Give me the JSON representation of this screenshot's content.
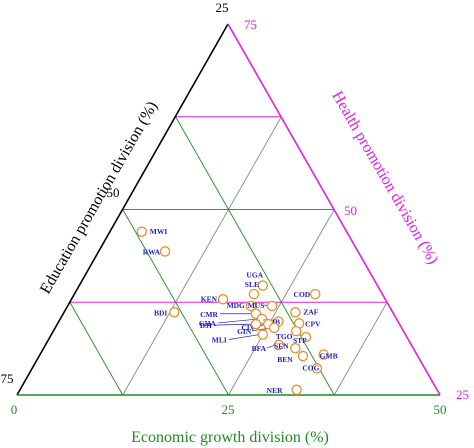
{
  "chart_data": {
    "type": "ternary-scatter",
    "axes": {
      "education": {
        "label": "Education promotion division (%)",
        "ticks": [
          "25",
          "50",
          "75"
        ],
        "color": "#000000"
      },
      "health": {
        "label": "Health promotion division (%)",
        "ticks": [
          "75",
          "50",
          "25"
        ],
        "color": "#e020e0"
      },
      "economic": {
        "label": "Economic growth division (%)",
        "ticks": [
          "0",
          "25",
          "50"
        ],
        "color": "#228B22"
      }
    },
    "marker_color": "#e8902a",
    "label_color": "#1f1fbf",
    "points": [
      {
        "label": "MWI",
        "u": 0.295,
        "v": 0.44
      },
      {
        "label": "RWA",
        "u": 0.35,
        "v": 0.387
      },
      {
        "label": "UGA",
        "u": 0.581,
        "v": 0.295
      },
      {
        "label": "SLE",
        "u": 0.56,
        "v": 0.272
      },
      {
        "label": "COD",
        "u": 0.705,
        "v": 0.272
      },
      {
        "label": "KEN",
        "u": 0.487,
        "v": 0.258
      },
      {
        "label": "MDG",
        "u": 0.553,
        "v": 0.24
      },
      {
        "label": "MUS",
        "u": 0.603,
        "v": 0.24
      },
      {
        "label": "BDI",
        "u": 0.372,
        "v": 0.223
      },
      {
        "label": "ZAF",
        "u": 0.658,
        "v": 0.223
      },
      {
        "label": "CMR",
        "u": 0.565,
        "v": 0.219
      },
      {
        "label": "GHA",
        "u": 0.579,
        "v": 0.205
      },
      {
        "label": "ZMB",
        "u": 0.618,
        "v": 0.198
      },
      {
        "label": "CPV",
        "u": 0.667,
        "v": 0.193
      },
      {
        "label": "CIV",
        "u": 0.594,
        "v": 0.191
      },
      {
        "label": "DJI",
        "u": 0.565,
        "v": 0.191
      },
      {
        "label": "GIN",
        "u": 0.608,
        "v": 0.181
      },
      {
        "label": "TGO",
        "u": 0.66,
        "v": 0.172
      },
      {
        "label": "MLI",
        "u": 0.581,
        "v": 0.163
      },
      {
        "label": "STP",
        "u": 0.683,
        "v": 0.156
      },
      {
        "label": "BFA",
        "u": 0.619,
        "v": 0.135
      },
      {
        "label": "SEN",
        "u": 0.658,
        "v": 0.126
      },
      {
        "label": "GMB",
        "u": 0.725,
        "v": 0.109
      },
      {
        "label": "BEN",
        "u": 0.676,
        "v": 0.105
      },
      {
        "label": "COG",
        "u": 0.709,
        "v": 0.072
      },
      {
        "label": "NER",
        "u": 0.661,
        "v": 0.014
      }
    ]
  }
}
